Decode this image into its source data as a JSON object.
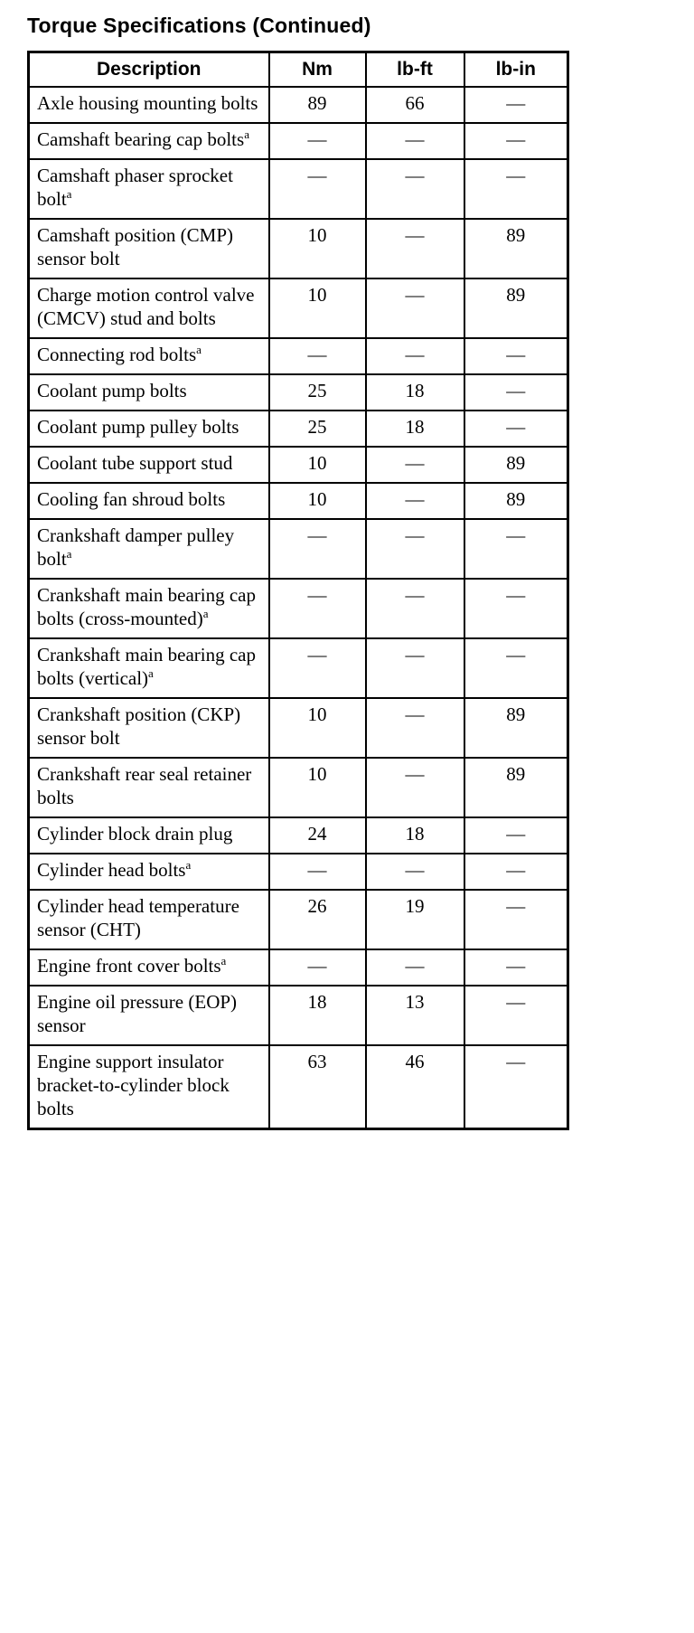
{
  "page": {
    "title": "Torque Specifications (Continued)"
  },
  "table": {
    "columns": [
      "Description",
      "Nm",
      "lb-ft",
      "lb-in"
    ],
    "rows": [
      {
        "description": "Axle housing mounting bolts",
        "note": "",
        "nm": "89",
        "lb_ft": "66",
        "lb_in": "—"
      },
      {
        "description": "Camshaft bearing cap bolts",
        "note": "a",
        "nm": "—",
        "lb_ft": "—",
        "lb_in": "—"
      },
      {
        "description": "Camshaft phaser sprocket bolt",
        "note": "a",
        "nm": "—",
        "lb_ft": "—",
        "lb_in": "—"
      },
      {
        "description": "Camshaft position (CMP) sensor bolt",
        "note": "",
        "nm": "10",
        "lb_ft": "—",
        "lb_in": "89"
      },
      {
        "description": "Charge motion control valve (CMCV) stud and bolts",
        "note": "",
        "nm": "10",
        "lb_ft": "—",
        "lb_in": "89"
      },
      {
        "description": "Connecting rod bolts",
        "note": "a",
        "nm": "—",
        "lb_ft": "—",
        "lb_in": "—"
      },
      {
        "description": "Coolant pump bolts",
        "note": "",
        "nm": "25",
        "lb_ft": "18",
        "lb_in": "—"
      },
      {
        "description": "Coolant pump pulley bolts",
        "note": "",
        "nm": "25",
        "lb_ft": "18",
        "lb_in": "—"
      },
      {
        "description": "Coolant tube support stud",
        "note": "",
        "nm": "10",
        "lb_ft": "—",
        "lb_in": "89"
      },
      {
        "description": "Cooling fan shroud bolts",
        "note": "",
        "nm": "10",
        "lb_ft": "—",
        "lb_in": "89"
      },
      {
        "description": "Crankshaft damper pulley bolt",
        "note": "a",
        "nm": "—",
        "lb_ft": "—",
        "lb_in": "—"
      },
      {
        "description": "Crankshaft main bearing cap bolts (cross-mounted)",
        "note": "a",
        "nm": "—",
        "lb_ft": "—",
        "lb_in": "—"
      },
      {
        "description": "Crankshaft main bearing cap bolts (vertical)",
        "note": "a",
        "nm": "—",
        "lb_ft": "—",
        "lb_in": "—"
      },
      {
        "description": "Crankshaft position (CKP) sensor bolt",
        "note": "",
        "nm": "10",
        "lb_ft": "—",
        "lb_in": "89"
      },
      {
        "description": "Crankshaft rear seal retainer bolts",
        "note": "",
        "nm": "10",
        "lb_ft": "—",
        "lb_in": "89"
      },
      {
        "description": "Cylinder block drain plug",
        "note": "",
        "nm": "24",
        "lb_ft": "18",
        "lb_in": "—"
      },
      {
        "description": "Cylinder head bolts",
        "note": "a",
        "nm": "—",
        "lb_ft": "—",
        "lb_in": "—"
      },
      {
        "description": "Cylinder head temperature sensor (CHT)",
        "note": "",
        "nm": "26",
        "lb_ft": "19",
        "lb_in": "—"
      },
      {
        "description": "Engine front cover bolts",
        "note": "a",
        "nm": "—",
        "lb_ft": "—",
        "lb_in": "—"
      },
      {
        "description": "Engine oil pressure (EOP) sensor",
        "note": "",
        "nm": "18",
        "lb_ft": "13",
        "lb_in": "—"
      },
      {
        "description": "Engine support insulator bracket-to-cylinder block bolts",
        "note": "",
        "nm": "63",
        "lb_ft": "46",
        "lb_in": "—"
      }
    ]
  }
}
